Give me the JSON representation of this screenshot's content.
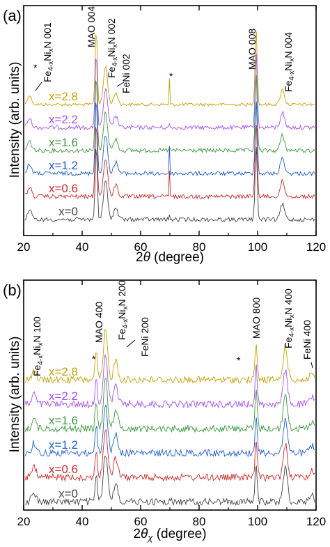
{
  "chart_data": [
    {
      "type": "line",
      "panel_label": "(a)",
      "xlabel": "2θ (degree)",
      "ylabel": "Intensity (arb. units)",
      "xlim": [
        20,
        120
      ],
      "xticks": [
        "20",
        "40",
        "60",
        "80",
        "100",
        "120"
      ],
      "series": [
        {
          "name": "x=2.8",
          "color": "#c8a000"
        },
        {
          "name": "x=2.2",
          "color": "#a64dff"
        },
        {
          "name": "x=1.6",
          "color": "#3a9a3a"
        },
        {
          "name": "x=1.2",
          "color": "#1f5fd6"
        },
        {
          "name": "x=0.6",
          "color": "#d62728"
        },
        {
          "name": "x=0",
          "color": "#444444"
        }
      ],
      "peaks": [
        {
          "x": 22.0,
          "label": "Fe4-xNixN 001",
          "height": 0.12
        },
        {
          "x": 44.8,
          "label": "MAO 004",
          "height": 1.0
        },
        {
          "x": 48.0,
          "label": "Fe4-xNixN 002",
          "height": 0.5
        },
        {
          "x": 51.5,
          "label": "FeNi 002",
          "height": 0.15
        },
        {
          "x": 69.8,
          "label": "*",
          "height": 0.4
        },
        {
          "x": 99.5,
          "label": "MAO 008",
          "height": 1.0
        },
        {
          "x": 108.5,
          "label": "Fe4-xNixN 004",
          "height": 0.2
        }
      ],
      "annotations": [
        {
          "text": "*",
          "x": 22.0
        },
        {
          "text": "*",
          "x": 69.8
        }
      ]
    },
    {
      "type": "line",
      "panel_label": "(b)",
      "xlabel": "2θχ (degree)",
      "ylabel": "Intensity (arb. units)",
      "xlim": [
        20,
        120
      ],
      "xticks": [
        "20",
        "40",
        "60",
        "80",
        "100",
        "120"
      ],
      "series": [
        {
          "name": "x=2.8",
          "color": "#c8a000"
        },
        {
          "name": "x=2.2",
          "color": "#a64dff"
        },
        {
          "name": "x=1.6",
          "color": "#3a9a3a"
        },
        {
          "name": "x=1.2",
          "color": "#1f5fd6"
        },
        {
          "name": "x=0.6",
          "color": "#d62728"
        },
        {
          "name": "x=0",
          "color": "#444444"
        }
      ],
      "peaks": [
        {
          "x": 23.5,
          "label": "Fe4-xNixN 100",
          "height": 0.2
        },
        {
          "x": 44.8,
          "label": "MAO 400",
          "height": 0.6
        },
        {
          "x": 48.0,
          "label": "Fe4-xNixN 200",
          "height": 1.0
        },
        {
          "x": 51.5,
          "label": "FeNi 200",
          "height": 0.4
        },
        {
          "x": 99.5,
          "label": "MAO 800",
          "height": 0.8
        },
        {
          "x": 109.5,
          "label": "Fe4-xNixN 400",
          "height": 0.7
        },
        {
          "x": 118.5,
          "label": "FeNi 400",
          "height": 0.15
        }
      ],
      "annotations": [
        {
          "text": "*",
          "x": 43.0
        },
        {
          "text": "*",
          "x": 94.0
        }
      ]
    }
  ],
  "text": {
    "a_label": "(a)",
    "b_label": "(b)",
    "ylabel": "Intensity (arb. units)",
    "a_xlabel_prefix": "2",
    "a_xlabel_sym": "θ",
    "a_xlabel_suffix": " (degree)",
    "b_xlabel_prefix": "2",
    "b_xlabel_sym": "θ",
    "b_xlabel_sub": "χ",
    "b_xlabel_suffix": " (degree)",
    "a_ann": {
      "fe001": [
        "Fe",
        "4-x",
        "Ni",
        "x",
        "N 001"
      ],
      "mao004": "MAO 004",
      "fe002": [
        "Fe",
        "4-x",
        "Ni",
        "x",
        "N 002"
      ],
      "feni002": "FeNi 002",
      "mao008": "MAO 008",
      "fe004": [
        "Fe",
        "4-x",
        "Ni",
        "x",
        "N 004"
      ],
      "star": "*"
    },
    "b_ann": {
      "fe100": [
        "Fe",
        "4-x",
        "Ni",
        "x",
        "N 100"
      ],
      "mao400": "MAO 400",
      "fe200": [
        "Fe",
        "4-x",
        "Ni",
        "x",
        "N 200"
      ],
      "feni200": "FeNi 200",
      "mao800": "MAO 800",
      "fe400": [
        "Fe",
        "4-x",
        "Ni",
        "x",
        "N 400"
      ],
      "feni400": "FeNi 400",
      "star": "*"
    }
  }
}
